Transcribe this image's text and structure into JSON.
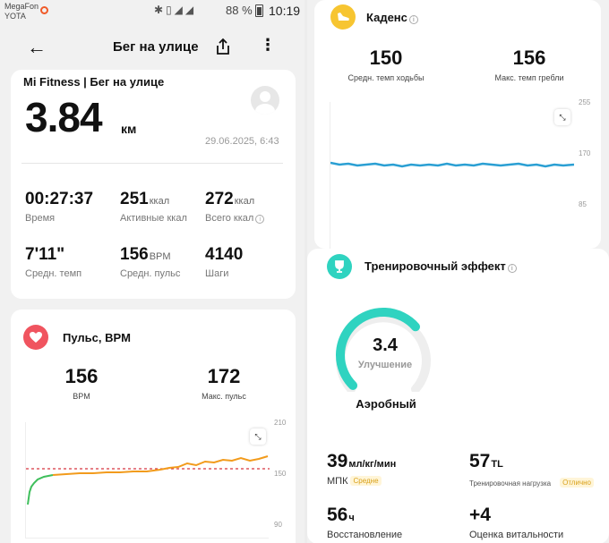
{
  "status_bar": {
    "operator_1": "MegaFon",
    "operator_2": "YOTA",
    "battery": "88 %",
    "time": "10:19"
  },
  "header": {
    "title": "Бег на улице"
  },
  "summary": {
    "brand": "Mi Fitness | Бег на улице",
    "distance": "3.84",
    "distance_unit": "км",
    "date": "29.06.2025, 6:43",
    "stats": [
      {
        "value": "00:27:37",
        "unit": "",
        "label": "Время"
      },
      {
        "value": "251",
        "unit": "ккал",
        "label": "Активные ккал"
      },
      {
        "value": "272",
        "unit": "ккал",
        "label": "Всего ккал"
      },
      {
        "value": "7'11\"",
        "unit": "",
        "label": "Средн. темп"
      },
      {
        "value": "156",
        "unit": "BPM",
        "label": "Средн. пульс"
      },
      {
        "value": "4140",
        "unit": "",
        "label": "Шаги"
      }
    ]
  },
  "heart_rate": {
    "title": "Пульс, BPM",
    "avg_value": "156",
    "avg_label": "BPM",
    "max_value": "172",
    "max_label": "Макс. пульс",
    "axis": [
      "210",
      "150",
      "90"
    ]
  },
  "cadence": {
    "title": "Каденс",
    "avg_value": "150",
    "avg_label": "Средн. темп ходьбы",
    "max_value": "156",
    "max_label": "Макс. темп гребли",
    "axis": [
      "255",
      "170",
      "85"
    ]
  },
  "training_effect": {
    "title": "Тренировочный эффект",
    "value": "3.4",
    "value_fraction": 0.68,
    "sub": "Улучшение",
    "caption": "Аэробный",
    "metrics": [
      {
        "value": "39",
        "unit": "мл/кг/мин",
        "label": "МПК",
        "badge": "Средне"
      },
      {
        "value": "57",
        "unit": "TL",
        "label": "Тренировочная нагрузка",
        "badge": "Отлично"
      },
      {
        "value": "56",
        "unit": "ч",
        "label": "Восстановление",
        "badge": ""
      },
      {
        "value": "+4",
        "unit": "",
        "label": "Оценка витальности",
        "badge": ""
      }
    ]
  },
  "colors": {
    "heart_red": "#f0545f",
    "cadence_yellow": "#f7c531",
    "effect_teal": "#2fd3c0",
    "hr_line": "#f29b1c",
    "hr_start": "#3fbf5c",
    "cadence_line": "#2a9fd3"
  }
}
